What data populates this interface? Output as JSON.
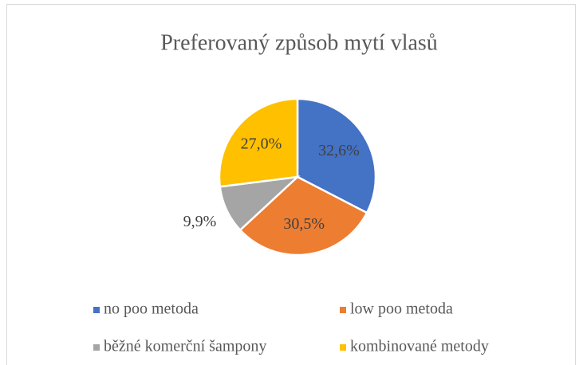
{
  "chart_data": {
    "type": "pie",
    "title": "Preferovaný způsob mytí vlasů",
    "categories": [
      "no poo metoda",
      "low poo metoda",
      "běžné komerční šampony",
      "kombinované metody"
    ],
    "values": [
      32.6,
      30.5,
      9.9,
      27.0
    ],
    "value_labels": [
      "32,6%",
      "30,5%",
      "9,9%",
      "27,0%"
    ],
    "colors": [
      "#4472c4",
      "#ed7d31",
      "#a5a5a5",
      "#ffc000"
    ],
    "legend": "bottom"
  }
}
